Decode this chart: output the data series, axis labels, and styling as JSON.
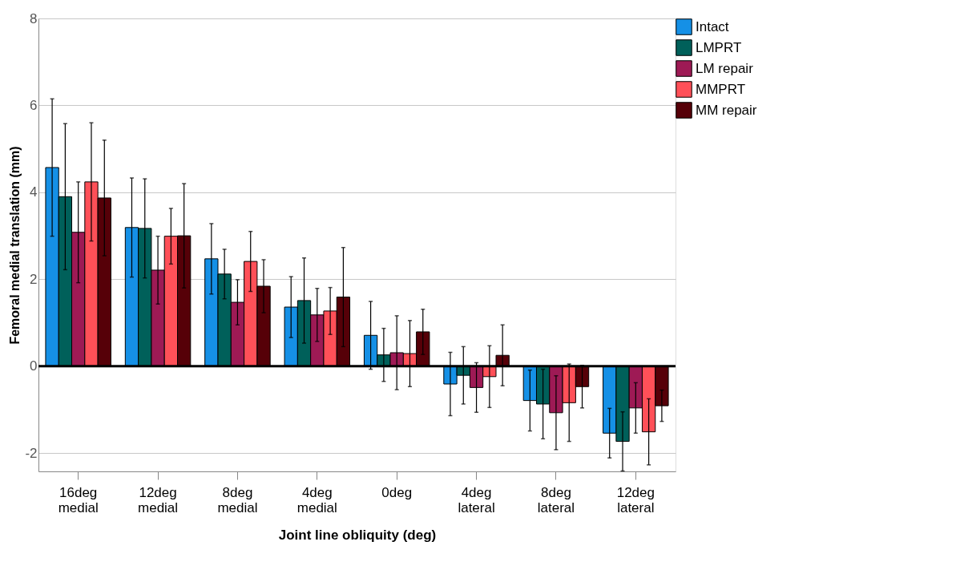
{
  "chart_data": {
    "type": "bar",
    "xlabel": "Joint line obliquity (deg)",
    "ylabel": "Femoral medial translation (mm)",
    "categories": [
      "16deg\nmedial",
      "12deg\nmedial",
      "8deg\nmedial",
      "4deg\nmedial",
      "0deg",
      "4deg\nlateral",
      "8deg\nlateral",
      "12deg\nlateral"
    ],
    "series": [
      {
        "name": "Intact",
        "color": "#1590e6",
        "values": [
          4.57,
          3.19,
          2.47,
          1.36,
          0.71,
          -0.41,
          -0.79,
          -1.54
        ],
        "errors": [
          1.58,
          1.14,
          0.81,
          0.7,
          0.78,
          0.73,
          0.7,
          0.57
        ]
      },
      {
        "name": "LMPRT",
        "color": "#00605a",
        "values": [
          3.9,
          3.17,
          2.12,
          1.51,
          0.26,
          -0.21,
          -0.87,
          -1.73
        ],
        "errors": [
          1.68,
          1.14,
          0.57,
          0.98,
          0.61,
          0.66,
          0.8,
          0.68
        ]
      },
      {
        "name": "LM repair",
        "color": "#9e1a55",
        "values": [
          3.08,
          2.21,
          1.47,
          1.18,
          0.31,
          -0.49,
          -1.07,
          -0.96
        ],
        "errors": [
          1.16,
          0.78,
          0.52,
          0.61,
          0.85,
          0.57,
          0.85,
          0.58
        ]
      },
      {
        "name": "MMPRT",
        "color": "#ff5058",
        "values": [
          4.24,
          2.99,
          2.41,
          1.27,
          0.29,
          -0.24,
          -0.84,
          -1.51
        ],
        "errors": [
          1.36,
          0.64,
          0.69,
          0.54,
          0.76,
          0.71,
          0.89,
          0.76
        ]
      },
      {
        "name": "MM repair",
        "color": "#560008",
        "values": [
          3.87,
          3.0,
          1.84,
          1.59,
          0.79,
          0.25,
          -0.47,
          -0.91
        ],
        "errors": [
          1.33,
          1.2,
          0.61,
          1.14,
          0.52,
          0.7,
          0.49,
          0.36
        ]
      }
    ],
    "ylim": [
      -2.42,
      8
    ],
    "yticks": [
      -2,
      0,
      2,
      4,
      6,
      8
    ],
    "grid": "y",
    "legend": "top right",
    "ref_lines": [
      {
        "axis": "y",
        "value": 0,
        "color": "#000000"
      }
    ]
  }
}
